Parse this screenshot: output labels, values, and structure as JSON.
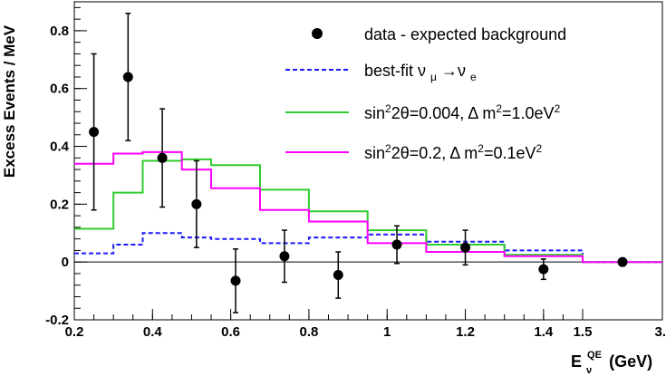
{
  "chart_data": {
    "type": "line",
    "title": "",
    "ylabel": "Excess Events / MeV",
    "xlabel_main": "E",
    "xlabel_sup": "QE",
    "xlabel_sub": "ν",
    "xlabel_unit": " (GeV)",
    "ylim": [
      -0.2,
      0.9
    ],
    "x_tick_labels": [
      "0.2",
      "0.4",
      "0.6",
      "0.8",
      "1",
      "1.2",
      "1.4",
      "1.5",
      "3."
    ],
    "x_bin_edges": [
      0.2,
      0.3,
      0.375,
      0.475,
      0.55,
      0.675,
      0.8,
      0.95,
      1.1,
      1.3,
      1.5,
      3.0
    ],
    "y_ticks": [
      -0.2,
      0,
      0.2,
      0.4,
      0.6,
      0.8
    ],
    "y_tick_labels": [
      "-0.2",
      "0",
      "0.2",
      "0.4",
      "0.6",
      "0.8"
    ],
    "legend_position": "top-right",
    "series": [
      {
        "name": "data - expected background",
        "kind": "points",
        "color": "#000000",
        "x": [
          0.25,
          0.3375,
          0.425,
          0.5125,
          0.6125,
          0.7375,
          0.875,
          1.025,
          1.2,
          1.4,
          2.25
        ],
        "y": [
          0.45,
          0.64,
          0.36,
          0.2,
          -0.065,
          0.02,
          -0.045,
          0.06,
          0.05,
          -0.025,
          0.0
        ],
        "err": [
          0.27,
          0.22,
          0.17,
          0.15,
          0.11,
          0.09,
          0.08,
          0.065,
          0.06,
          0.035,
          0.01
        ]
      },
      {
        "name_prefix": "best-fit ν",
        "name_sub1": "μ",
        "name_arrow": "→ν",
        "name_sub2": "e",
        "kind": "step",
        "style": "dashed",
        "color": "#1a1aff",
        "values": [
          0.03,
          0.06,
          0.1,
          0.085,
          0.08,
          0.065,
          0.085,
          0.095,
          0.07,
          0.04,
          0.0
        ]
      },
      {
        "name_main": "sin",
        "name_sup1": "2",
        "name_mid": "2θ=0.004, Δ m",
        "name_sup2": "2",
        "name_mid2": "=1.0eV",
        "name_sup3": "2",
        "kind": "step",
        "color": "#2ecc2e",
        "values": [
          0.115,
          0.24,
          0.35,
          0.355,
          0.335,
          0.25,
          0.175,
          0.11,
          0.06,
          0.025,
          0.0
        ]
      },
      {
        "name_main": "sin",
        "name_sup1": "2",
        "name_mid": "2θ=0.2, Δ m",
        "name_sup2": "2",
        "name_mid2": "=0.1eV",
        "name_sup3": "2",
        "kind": "step",
        "color": "#ff00ff",
        "values": [
          0.34,
          0.375,
          0.38,
          0.32,
          0.255,
          0.18,
          0.14,
          0.065,
          0.035,
          0.02,
          0.0
        ]
      }
    ]
  }
}
